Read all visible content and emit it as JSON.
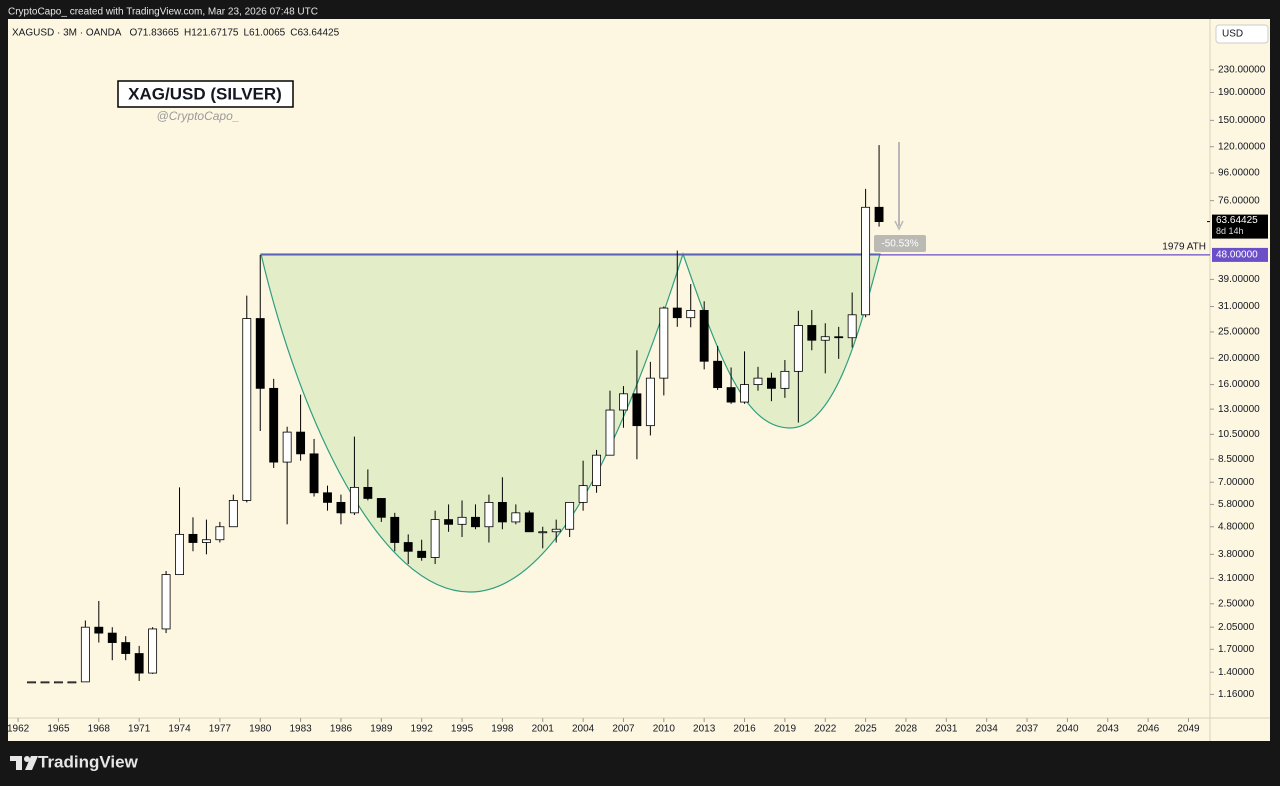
{
  "header": {
    "credit": "CryptoCapo_ created with TradingView.com, Mar 23, 2026 07:48 UTC"
  },
  "footer": {
    "brand": "TradingView"
  },
  "chart_data": {
    "type": "candlestick",
    "title": "XAG/USD (SILVER)",
    "subtitle": "@CryptoCapo_",
    "symbol": "XAGUSD · 3M · OANDA",
    "ohlc": [
      {
        "label": "O",
        "value": 71.83665
      },
      {
        "label": "H",
        "value": 121.67175
      },
      {
        "label": "L",
        "value": 61.0065
      },
      {
        "label": "C",
        "value": 63.64425
      }
    ],
    "currency": "USD",
    "log_scale": true,
    "x": [
      1963,
      1964,
      1965,
      1966,
      1967,
      1968,
      1969,
      1970,
      1971,
      1972,
      1973,
      1974,
      1975,
      1976,
      1977,
      1978,
      1979,
      1980,
      1981,
      1982,
      1983,
      1984,
      1985,
      1986,
      1987,
      1988,
      1989,
      1990,
      1991,
      1992,
      1993,
      1994,
      1995,
      1996,
      1997,
      1998,
      1999,
      2000,
      2001,
      2002,
      2003,
      2004,
      2005,
      2006,
      2007,
      2008,
      2009,
      2010,
      2011,
      2012,
      2013,
      2014,
      2015,
      2016,
      2017,
      2018,
      2019,
      2020,
      2021,
      2022,
      2023,
      2024,
      2025,
      2026
    ],
    "open": [
      1.28,
      1.29,
      1.29,
      1.29,
      1.29,
      2.05,
      1.95,
      1.8,
      1.64,
      1.39,
      2.02,
      3.2,
      4.5,
      4.2,
      4.3,
      4.8,
      6.0,
      28.0,
      15.5,
      8.3,
      10.7,
      8.9,
      6.4,
      5.9,
      5.4,
      6.7,
      6.1,
      5.2,
      4.2,
      3.9,
      3.7,
      5.1,
      4.9,
      5.2,
      4.8,
      5.9,
      5.0,
      5.4,
      4.6,
      4.6,
      4.7,
      5.9,
      6.8,
      8.8,
      12.9,
      14.8,
      11.3,
      16.9,
      30.6,
      28.2,
      30.0,
      19.5,
      15.6,
      13.8,
      16.0,
      16.9,
      15.5,
      17.9,
      26.4,
      23.3,
      24.0,
      23.8,
      28.9,
      71.84
    ],
    "high": [
      1.29,
      1.29,
      1.29,
      1.29,
      2.17,
      2.56,
      2.05,
      1.9,
      1.75,
      2.05,
      3.3,
      6.7,
      5.2,
      5.1,
      5.0,
      6.3,
      34.0,
      48.0,
      16.8,
      11.2,
      14.7,
      10.1,
      6.8,
      6.3,
      10.3,
      7.8,
      6.1,
      5.4,
      4.5,
      4.3,
      5.5,
      5.8,
      6.0,
      5.8,
      6.3,
      7.3,
      5.8,
      5.5,
      4.8,
      5.1,
      5.9,
      8.4,
      9.2,
      15.2,
      15.8,
      21.4,
      19.4,
      31.0,
      49.8,
      37.5,
      32.4,
      22.2,
      18.5,
      21.2,
      18.6,
      17.7,
      19.7,
      29.9,
      30.1,
      26.9,
      26.1,
      34.9,
      84.0,
      121.67
    ],
    "low": [
      1.28,
      1.29,
      1.29,
      1.29,
      1.29,
      1.8,
      1.55,
      1.55,
      1.3,
      1.38,
      1.95,
      3.2,
      3.9,
      3.8,
      4.2,
      4.8,
      5.9,
      10.8,
      7.9,
      4.9,
      8.4,
      6.2,
      5.5,
      4.9,
      5.3,
      6.0,
      5.0,
      3.9,
      3.5,
      3.6,
      3.5,
      4.6,
      4.4,
      4.7,
      4.2,
      4.7,
      4.9,
      4.6,
      4.0,
      4.2,
      4.4,
      5.5,
      6.4,
      8.8,
      11.1,
      8.5,
      10.4,
      14.6,
      26.1,
      26.0,
      18.2,
      15.3,
      13.6,
      13.6,
      15.2,
      13.9,
      14.3,
      11.6,
      21.4,
      17.6,
      19.9,
      21.9,
      28.3,
      61.01
    ],
    "close": [
      1.29,
      1.29,
      1.29,
      1.29,
      2.05,
      1.95,
      1.8,
      1.64,
      1.39,
      2.02,
      3.2,
      4.5,
      4.2,
      4.3,
      4.8,
      6.0,
      28.0,
      15.5,
      8.3,
      10.7,
      8.9,
      6.4,
      5.9,
      5.4,
      6.7,
      6.1,
      5.2,
      4.2,
      3.9,
      3.7,
      5.1,
      4.9,
      5.2,
      4.8,
      5.9,
      5.0,
      5.4,
      4.6,
      4.6,
      4.7,
      5.9,
      6.8,
      8.8,
      12.9,
      14.8,
      11.3,
      16.9,
      30.6,
      28.2,
      30.0,
      19.5,
      15.6,
      13.8,
      16.0,
      16.9,
      15.5,
      17.9,
      26.4,
      23.3,
      24.0,
      23.8,
      28.9,
      71.84,
      63.64
    ],
    "up_color": "#ffffff",
    "down_color": "#000000",
    "xlim": [
      1961.25,
      2050.6
    ],
    "xticks": [
      1962,
      1965,
      1968,
      1971,
      1974,
      1977,
      1980,
      1983,
      1986,
      1989,
      1992,
      1995,
      1998,
      2001,
      2004,
      2007,
      2010,
      2013,
      2016,
      2019,
      2022,
      2025,
      2028,
      2031,
      2034,
      2037,
      2040,
      2043,
      2046,
      2049
    ],
    "ylim": [
      0.95,
      354
    ],
    "yticks": [
      {
        "value": 1.16,
        "label": "1.16000"
      },
      {
        "value": 1.4,
        "label": "1.40000"
      },
      {
        "value": 1.7,
        "label": "1.70000"
      },
      {
        "value": 2.05,
        "label": "2.05000"
      },
      {
        "value": 2.5,
        "label": "2.50000"
      },
      {
        "value": 3.1,
        "label": "3.10000"
      },
      {
        "value": 3.8,
        "label": "3.80000"
      },
      {
        "value": 4.8,
        "label": "4.80000"
      },
      {
        "value": 5.8,
        "label": "5.80000"
      },
      {
        "value": 7,
        "label": "7.00000"
      },
      {
        "value": 8.5,
        "label": "8.50000"
      },
      {
        "value": 10.5,
        "label": "10.50000"
      },
      {
        "value": 13,
        "label": "13.00000"
      },
      {
        "value": 16,
        "label": "16.00000"
      },
      {
        "value": 20,
        "label": "20.00000"
      },
      {
        "value": 25,
        "label": "25.00000"
      },
      {
        "value": 31,
        "label": "31.00000"
      },
      {
        "value": 39,
        "label": "39.00000"
      },
      {
        "value": 76,
        "label": "76.00000"
      },
      {
        "value": 96,
        "label": "96.00000"
      },
      {
        "value": 120,
        "label": "120.00000"
      },
      {
        "value": 150,
        "label": "150.00000"
      },
      {
        "value": 190,
        "label": "190.00000"
      },
      {
        "value": 230,
        "label": "230.00000"
      }
    ],
    "last_price": {
      "value": 63.64425,
      "label": "63.64425",
      "countdown": "8d 14h"
    },
    "level": {
      "value": 48,
      "label": "48.00000",
      "name": "1979 ATH",
      "color": "#6a4fc9"
    },
    "measure_label": "-50.53%"
  }
}
